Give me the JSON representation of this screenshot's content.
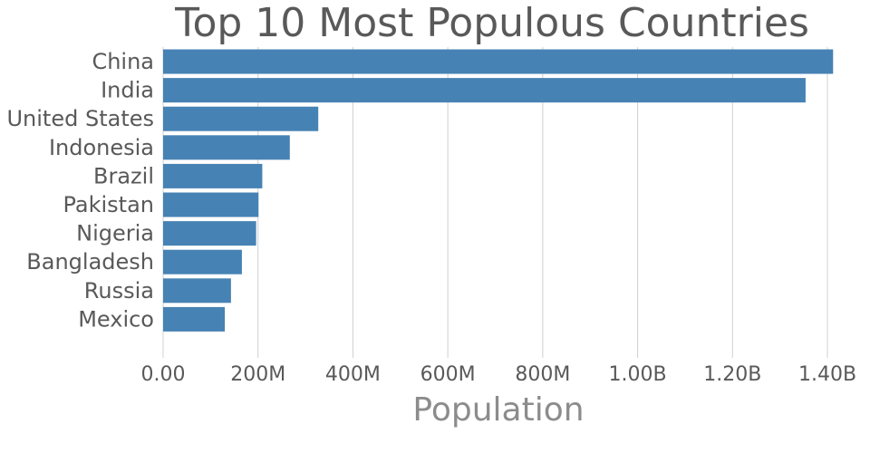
{
  "chart_data": {
    "type": "bar",
    "orientation": "horizontal",
    "title": "Top 10 Most Populous Countries",
    "xlabel": "Population",
    "ylabel": "",
    "categories": [
      "China",
      "India",
      "United States",
      "Indonesia",
      "Brazil",
      "Pakistan",
      "Nigeria",
      "Bangladesh",
      "Russia",
      "Mexico"
    ],
    "values": [
      1412000000,
      1354000000,
      327000000,
      267000000,
      209000000,
      201000000,
      196000000,
      166000000,
      143000000,
      130000000
    ],
    "xlim": [
      0,
      1400000000
    ],
    "x_ticks": [
      0,
      200000000,
      400000000,
      600000000,
      800000000,
      1000000000,
      1200000000,
      1400000000
    ],
    "x_tick_labels": [
      "0.00",
      "200M",
      "400M",
      "600M",
      "800M",
      "1.00B",
      "1.20B",
      "1.40B"
    ],
    "grid": "vertical",
    "bar_color": "#4682b4"
  }
}
